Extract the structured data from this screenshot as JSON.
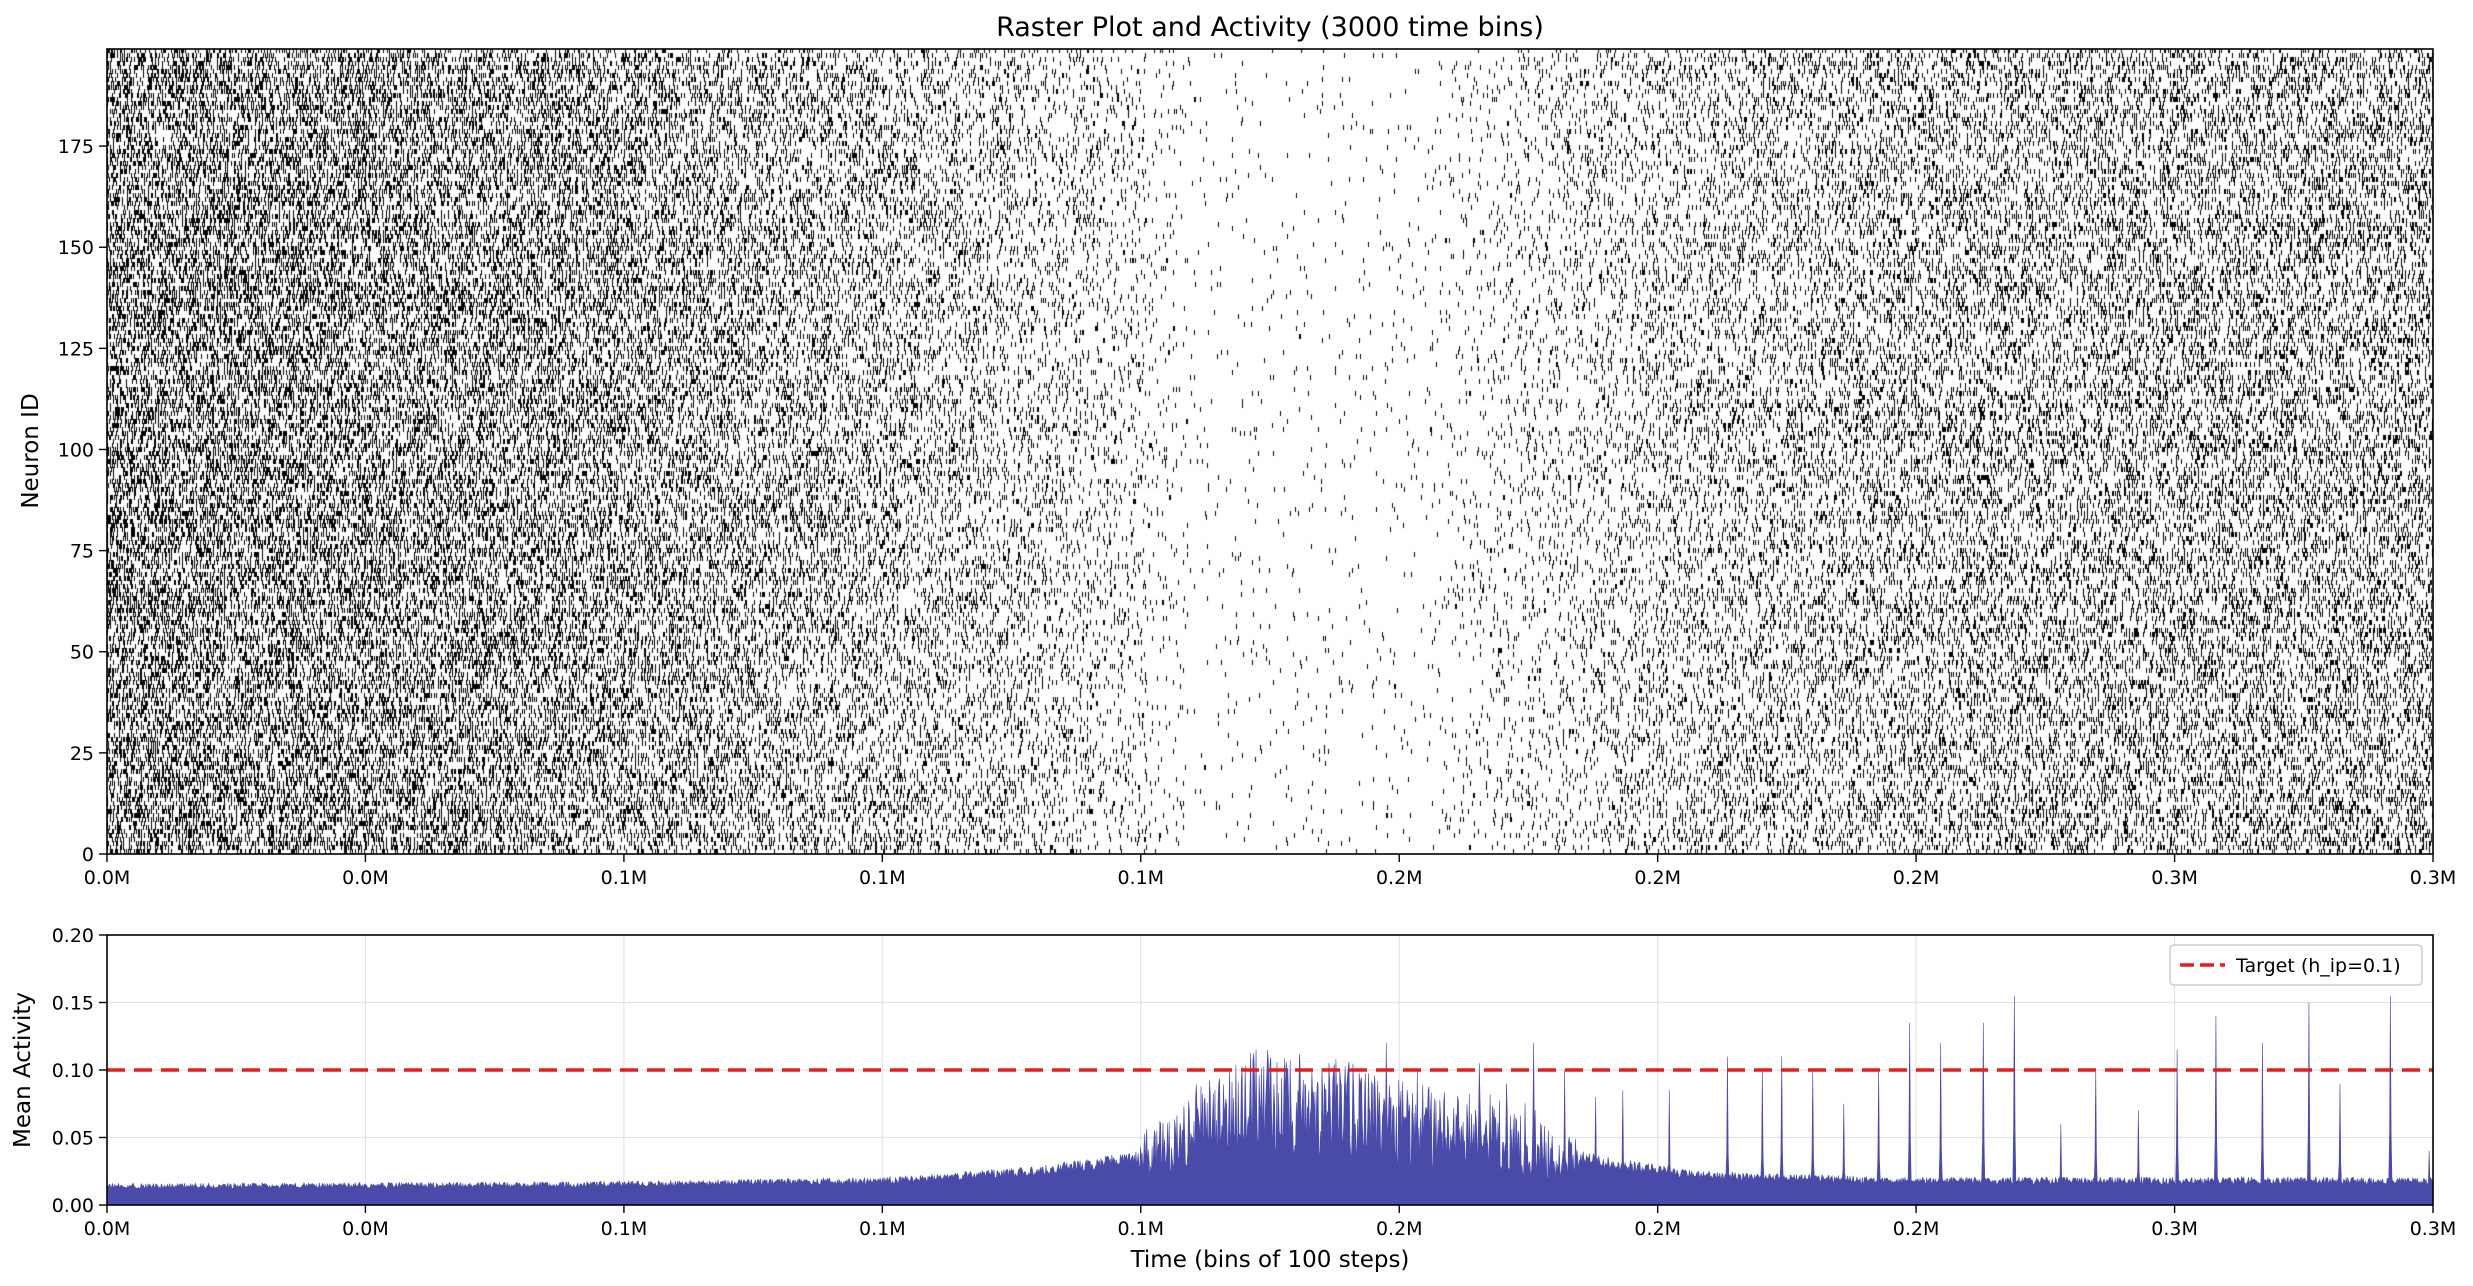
{
  "chart_data": [
    {
      "type": "raster",
      "title": "Raster Plot and Activity (3000 time bins)",
      "ylabel": "Neuron ID",
      "xlabel": "",
      "ylim": [
        0,
        199
      ],
      "xlim": [
        0,
        3000
      ],
      "yticks": [
        0,
        25,
        50,
        75,
        100,
        125,
        150,
        175
      ],
      "xticks": [
        0,
        333.3,
        666.7,
        1000,
        1333.3,
        1666.7,
        2000,
        2333.3,
        2666.7,
        3000
      ],
      "xtick_labels": [
        "0.0M",
        "0.0M",
        "0.1M",
        "0.1M",
        "0.1M",
        "0.2M",
        "0.2M",
        "0.2M",
        "0.3M",
        "0.3M"
      ],
      "grid": true,
      "num_neurons": 200,
      "num_bins": 3000,
      "spike_color": "#000000",
      "density_profile": [
        {
          "bin": 0,
          "density": 0.28
        },
        {
          "bin": 600,
          "density": 0.22
        },
        {
          "bin": 1100,
          "density": 0.12
        },
        {
          "bin": 1300,
          "density": 0.06
        },
        {
          "bin": 1400,
          "density": 0.01
        },
        {
          "bin": 1700,
          "density": 0.01
        },
        {
          "bin": 1800,
          "density": 0.04
        },
        {
          "bin": 2000,
          "density": 0.1
        },
        {
          "bin": 2400,
          "density": 0.15
        },
        {
          "bin": 3000,
          "density": 0.17
        }
      ]
    },
    {
      "type": "area",
      "title": "",
      "xlabel": "Time (bins of 100 steps)",
      "ylabel": "Mean Activity",
      "ylim": [
        0,
        0.2
      ],
      "xlim": [
        0,
        3000
      ],
      "yticks": [
        0.0,
        0.05,
        0.1,
        0.15,
        0.2
      ],
      "ytick_labels": [
        "0.00",
        "0.05",
        "0.10",
        "0.15",
        "0.20"
      ],
      "xticks": [
        0,
        333.3,
        666.7,
        1000,
        1333.3,
        1666.7,
        2000,
        2333.3,
        2666.7,
        3000
      ],
      "xtick_labels": [
        "0.0M",
        "0.0M",
        "0.1M",
        "0.1M",
        "0.1M",
        "0.2M",
        "0.2M",
        "0.2M",
        "0.3M",
        "0.3M"
      ],
      "grid": true,
      "fill_color": "#4a4aa8",
      "baseline_profile": [
        {
          "x": 0,
          "y": 0.014
        },
        {
          "x": 600,
          "y": 0.015
        },
        {
          "x": 1000,
          "y": 0.018
        },
        {
          "x": 1200,
          "y": 0.025
        },
        {
          "x": 1330,
          "y": 0.035
        },
        {
          "x": 1420,
          "y": 0.06
        },
        {
          "x": 1480,
          "y": 0.075
        },
        {
          "x": 1600,
          "y": 0.07
        },
        {
          "x": 1720,
          "y": 0.055
        },
        {
          "x": 1850,
          "y": 0.04
        },
        {
          "x": 1950,
          "y": 0.03
        },
        {
          "x": 2050,
          "y": 0.022
        },
        {
          "x": 2300,
          "y": 0.018
        },
        {
          "x": 3000,
          "y": 0.018
        }
      ],
      "peaks": [
        {
          "x": 1650,
          "y": 0.12
        },
        {
          "x": 1690,
          "y": 0.1
        },
        {
          "x": 1770,
          "y": 0.105
        },
        {
          "x": 1805,
          "y": 0.09
        },
        {
          "x": 1840,
          "y": 0.12
        },
        {
          "x": 1880,
          "y": 0.1
        },
        {
          "x": 1920,
          "y": 0.08
        },
        {
          "x": 1955,
          "y": 0.085
        },
        {
          "x": 2015,
          "y": 0.085
        },
        {
          "x": 2090,
          "y": 0.11
        },
        {
          "x": 2135,
          "y": 0.1
        },
        {
          "x": 2160,
          "y": 0.11
        },
        {
          "x": 2200,
          "y": 0.1
        },
        {
          "x": 2240,
          "y": 0.075
        },
        {
          "x": 2285,
          "y": 0.1
        },
        {
          "x": 2325,
          "y": 0.135
        },
        {
          "x": 2365,
          "y": 0.12
        },
        {
          "x": 2420,
          "y": 0.135
        },
        {
          "x": 2460,
          "y": 0.155
        },
        {
          "x": 2520,
          "y": 0.06
        },
        {
          "x": 2565,
          "y": 0.1
        },
        {
          "x": 2620,
          "y": 0.07
        },
        {
          "x": 2670,
          "y": 0.115
        },
        {
          "x": 2720,
          "y": 0.14
        },
        {
          "x": 2780,
          "y": 0.12
        },
        {
          "x": 2840,
          "y": 0.15
        },
        {
          "x": 2880,
          "y": 0.09
        },
        {
          "x": 2945,
          "y": 0.155
        },
        {
          "x": 2995,
          "y": 0.04
        }
      ],
      "target_line": {
        "y": 0.1,
        "color": "#e02020",
        "style": "dashed",
        "label": "Target (h_ip=0.1)"
      },
      "legend_position": "top-right"
    }
  ]
}
